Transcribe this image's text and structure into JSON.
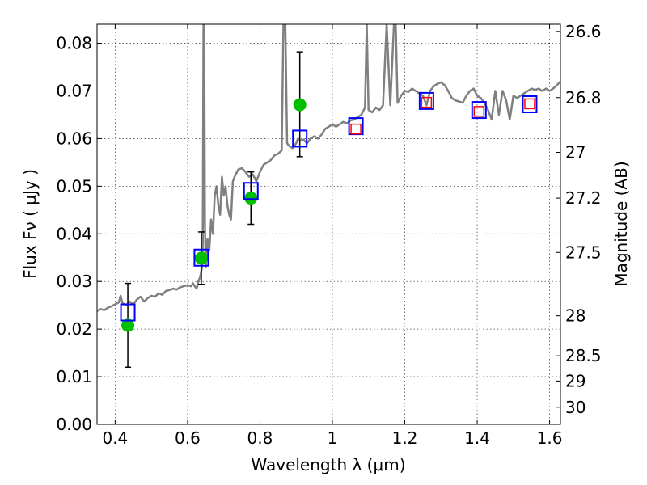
{
  "chart_data": {
    "type": "scatter",
    "title": "",
    "xlabel": "Wavelength  λ (μm)",
    "ylabel": "Flux  Fν  ( μJy )",
    "y2label": "Magnitude (AB)",
    "xlim": [
      0.35,
      1.63
    ],
    "ylim": [
      0.0,
      0.084
    ],
    "grid": true,
    "x_ticks": [
      0.4,
      0.6,
      0.8,
      1.0,
      1.2,
      1.4,
      1.6
    ],
    "x_tick_labels": [
      "0.4",
      "0.6",
      "0.8",
      "1",
      "1.2",
      "1.4",
      "1.6"
    ],
    "y_ticks": [
      0.0,
      0.01,
      0.02,
      0.03,
      0.04,
      0.05,
      0.06,
      0.07,
      0.08
    ],
    "y_tick_labels": [
      "0.00",
      "0.01",
      "0.02",
      "0.03",
      "0.04",
      "0.05",
      "0.06",
      "0.07",
      "0.08"
    ],
    "y2_ticks": [
      {
        "label": "26.6",
        "flux": 0.0825
      },
      {
        "label": "26.8",
        "flux": 0.0686
      },
      {
        "label": "27",
        "flux": 0.0571
      },
      {
        "label": "27.2",
        "flux": 0.0475
      },
      {
        "label": "27.5",
        "flux": 0.0361
      },
      {
        "label": "28",
        "flux": 0.0228
      },
      {
        "label": "28.5",
        "flux": 0.0144
      },
      {
        "label": "29",
        "flux": 0.0091
      },
      {
        "label": "30",
        "flux": 0.0036
      }
    ],
    "series": [
      {
        "kind": "line",
        "color": "#808080",
        "points": [
          [
            0.35,
            0.0238
          ],
          [
            0.36,
            0.0242
          ],
          [
            0.37,
            0.024
          ],
          [
            0.38,
            0.0245
          ],
          [
            0.39,
            0.0248
          ],
          [
            0.4,
            0.0252
          ],
          [
            0.41,
            0.0256
          ],
          [
            0.415,
            0.027
          ],
          [
            0.42,
            0.0255
          ],
          [
            0.43,
            0.025
          ],
          [
            0.44,
            0.0258
          ],
          [
            0.45,
            0.0252
          ],
          [
            0.46,
            0.0262
          ],
          [
            0.47,
            0.0268
          ],
          [
            0.48,
            0.0258
          ],
          [
            0.49,
            0.0265
          ],
          [
            0.5,
            0.027
          ],
          [
            0.51,
            0.0268
          ],
          [
            0.52,
            0.0275
          ],
          [
            0.53,
            0.0272
          ],
          [
            0.54,
            0.028
          ],
          [
            0.55,
            0.0282
          ],
          [
            0.56,
            0.0285
          ],
          [
            0.57,
            0.0283
          ],
          [
            0.58,
            0.0288
          ],
          [
            0.59,
            0.029
          ],
          [
            0.6,
            0.0292
          ],
          [
            0.61,
            0.029
          ],
          [
            0.615,
            0.0296
          ],
          [
            0.62,
            0.029
          ],
          [
            0.625,
            0.0285
          ],
          [
            0.63,
            0.03
          ],
          [
            0.635,
            0.031
          ],
          [
            0.64,
            0.033
          ],
          [
            0.642,
            0.038
          ],
          [
            0.644,
            0.084
          ],
          [
            0.646,
            0.084
          ],
          [
            0.648,
            0.042
          ],
          [
            0.65,
            0.033
          ],
          [
            0.655,
            0.039
          ],
          [
            0.66,
            0.0365
          ],
          [
            0.665,
            0.043
          ],
          [
            0.67,
            0.04
          ],
          [
            0.675,
            0.048
          ],
          [
            0.68,
            0.05
          ],
          [
            0.685,
            0.046
          ],
          [
            0.69,
            0.044
          ],
          [
            0.695,
            0.052
          ],
          [
            0.7,
            0.048
          ],
          [
            0.705,
            0.05
          ],
          [
            0.71,
            0.046
          ],
          [
            0.715,
            0.044
          ],
          [
            0.72,
            0.043
          ],
          [
            0.725,
            0.051
          ],
          [
            0.73,
            0.052
          ],
          [
            0.74,
            0.0535
          ],
          [
            0.75,
            0.0538
          ],
          [
            0.76,
            0.053
          ],
          [
            0.77,
            0.052
          ],
          [
            0.78,
            0.0525
          ],
          [
            0.79,
            0.051
          ],
          [
            0.8,
            0.053
          ],
          [
            0.81,
            0.0545
          ],
          [
            0.82,
            0.055
          ],
          [
            0.83,
            0.0555
          ],
          [
            0.84,
            0.0565
          ],
          [
            0.85,
            0.0568
          ],
          [
            0.86,
            0.0575
          ],
          [
            0.865,
            0.084
          ],
          [
            0.87,
            0.084
          ],
          [
            0.875,
            0.059
          ],
          [
            0.88,
            0.0585
          ],
          [
            0.89,
            0.058
          ],
          [
            0.9,
            0.059
          ],
          [
            0.905,
            0.06
          ],
          [
            0.91,
            0.0595
          ],
          [
            0.92,
            0.0598
          ],
          [
            0.93,
            0.059
          ],
          [
            0.94,
            0.06
          ],
          [
            0.95,
            0.0605
          ],
          [
            0.96,
            0.06
          ],
          [
            0.97,
            0.0608
          ],
          [
            0.98,
            0.062
          ],
          [
            0.99,
            0.0625
          ],
          [
            1.0,
            0.063
          ],
          [
            1.01,
            0.0625
          ],
          [
            1.02,
            0.063
          ],
          [
            1.03,
            0.0635
          ],
          [
            1.04,
            0.0632
          ],
          [
            1.05,
            0.0638
          ],
          [
            1.06,
            0.064
          ],
          [
            1.07,
            0.0645
          ],
          [
            1.08,
            0.065
          ],
          [
            1.09,
            0.0665
          ],
          [
            1.095,
            0.084
          ],
          [
            1.1,
            0.066
          ],
          [
            1.11,
            0.0655
          ],
          [
            1.12,
            0.0665
          ],
          [
            1.13,
            0.066
          ],
          [
            1.14,
            0.067
          ],
          [
            1.15,
            0.084
          ],
          [
            1.16,
            0.067
          ],
          [
            1.17,
            0.084
          ],
          [
            1.175,
            0.084
          ],
          [
            1.18,
            0.0675
          ],
          [
            1.19,
            0.069
          ],
          [
            1.2,
            0.07
          ],
          [
            1.21,
            0.0698
          ],
          [
            1.22,
            0.0705
          ],
          [
            1.23,
            0.07
          ],
          [
            1.24,
            0.0695
          ],
          [
            1.25,
            0.069
          ],
          [
            1.26,
            0.067
          ],
          [
            1.27,
            0.07
          ],
          [
            1.28,
            0.071
          ],
          [
            1.29,
            0.0715
          ],
          [
            1.3,
            0.0718
          ],
          [
            1.31,
            0.0712
          ],
          [
            1.32,
            0.07
          ],
          [
            1.33,
            0.0685
          ],
          [
            1.34,
            0.068
          ],
          [
            1.35,
            0.0678
          ],
          [
            1.36,
            0.0675
          ],
          [
            1.37,
            0.069
          ],
          [
            1.38,
            0.07
          ],
          [
            1.39,
            0.0705
          ],
          [
            1.4,
            0.069
          ],
          [
            1.41,
            0.0685
          ],
          [
            1.42,
            0.0675
          ],
          [
            1.43,
            0.066
          ],
          [
            1.44,
            0.064
          ],
          [
            1.45,
            0.07
          ],
          [
            1.46,
            0.065
          ],
          [
            1.47,
            0.07
          ],
          [
            1.48,
            0.068
          ],
          [
            1.49,
            0.064
          ],
          [
            1.5,
            0.069
          ],
          [
            1.51,
            0.0685
          ],
          [
            1.52,
            0.069
          ],
          [
            1.53,
            0.0695
          ],
          [
            1.54,
            0.07
          ],
          [
            1.55,
            0.0705
          ],
          [
            1.56,
            0.0702
          ],
          [
            1.57,
            0.0705
          ],
          [
            1.58,
            0.07
          ],
          [
            1.59,
            0.0705
          ],
          [
            1.6,
            0.07
          ],
          [
            1.61,
            0.0705
          ],
          [
            1.62,
            0.0712
          ],
          [
            1.63,
            0.072
          ]
        ]
      },
      {
        "kind": "points",
        "marker": "circle",
        "color": "#00bf00",
        "points": [
          {
            "x": 0.435,
            "y": 0.0208,
            "yerr_low": 0.012,
            "yerr_high": 0.0296
          },
          {
            "x": 0.638,
            "y": 0.0349,
            "yerr_low": 0.0294,
            "yerr_high": 0.0404
          },
          {
            "x": 0.775,
            "y": 0.0475,
            "yerr_low": 0.042,
            "yerr_high": 0.053
          },
          {
            "x": 0.91,
            "y": 0.0671,
            "yerr_low": 0.0562,
            "yerr_high": 0.0782
          }
        ]
      },
      {
        "kind": "points",
        "marker": "square-open",
        "color": "#0000ff",
        "points": [
          {
            "x": 0.435,
            "y": 0.0235
          },
          {
            "x": 0.638,
            "y": 0.035
          },
          {
            "x": 0.775,
            "y": 0.049
          },
          {
            "x": 0.91,
            "y": 0.06
          },
          {
            "x": 1.065,
            "y": 0.0626
          },
          {
            "x": 1.26,
            "y": 0.0679
          },
          {
            "x": 1.405,
            "y": 0.066
          },
          {
            "x": 1.545,
            "y": 0.0672
          }
        ]
      },
      {
        "kind": "points",
        "marker": "square-open-small",
        "color": "#ff0000",
        "points": [
          {
            "x": 1.065,
            "y": 0.062
          },
          {
            "x": 1.26,
            "y": 0.0676
          },
          {
            "x": 1.405,
            "y": 0.0657
          },
          {
            "x": 1.545,
            "y": 0.0673
          }
        ]
      }
    ]
  }
}
